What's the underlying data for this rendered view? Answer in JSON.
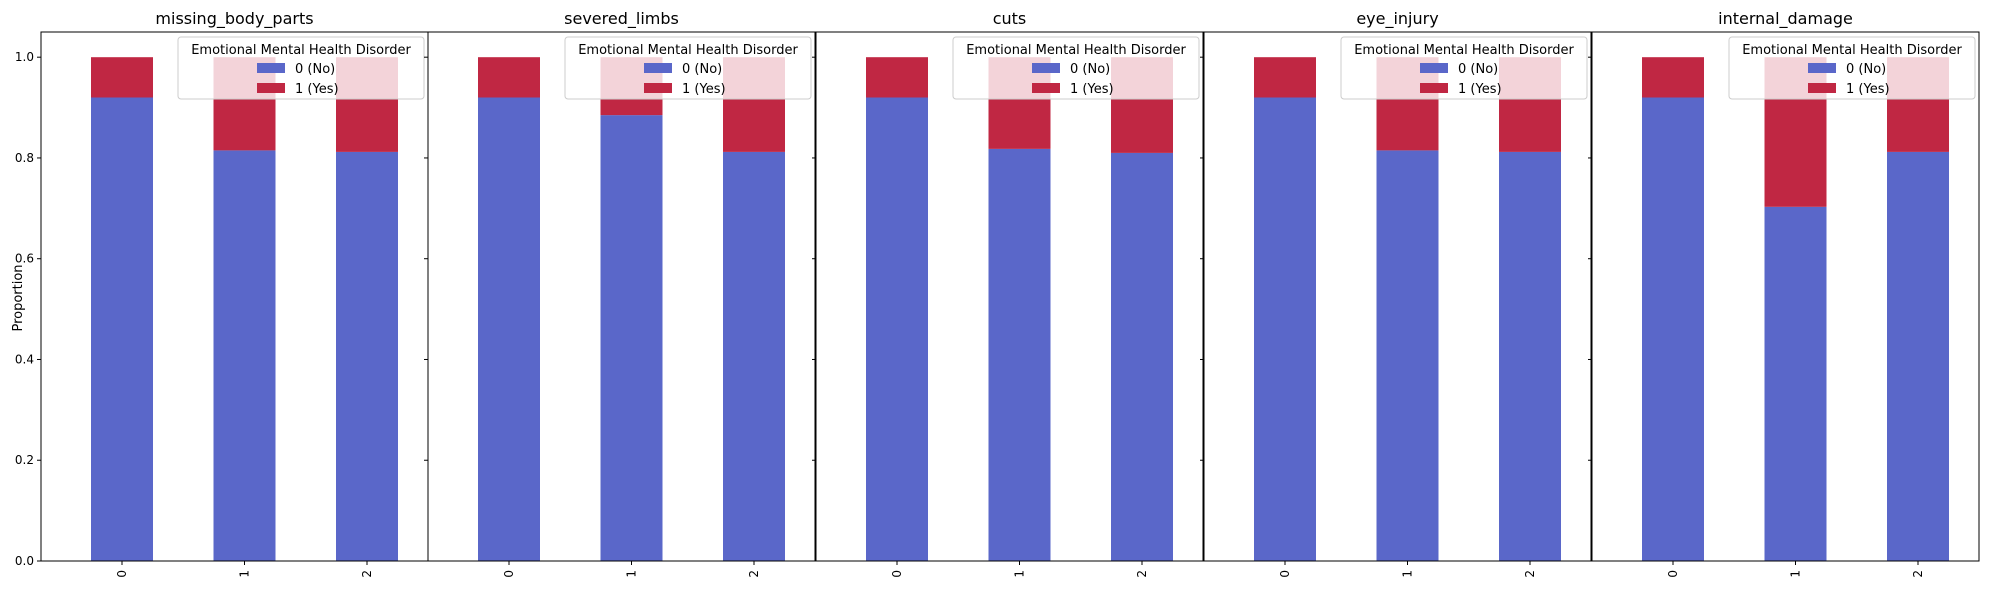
{
  "chart_data": {
    "type": "bar",
    "stacked": true,
    "ylabel": "Proportion",
    "ylim": [
      0,
      1.05
    ],
    "yticks": [
      "0.0",
      "0.2",
      "0.4",
      "0.6",
      "0.8",
      "1.0"
    ],
    "categories": [
      "0",
      "1",
      "2"
    ],
    "legend": {
      "title": "Emotional Mental Health Disorder",
      "placement": "upper-right",
      "entries": [
        "0 (No)",
        "1 (Yes)"
      ]
    },
    "colors": {
      "no": "#5a67c9",
      "yes": "#c02743"
    },
    "panels": [
      {
        "title": "missing_body_parts",
        "no": [
          0.92,
          0.815,
          0.812
        ],
        "yes": [
          0.08,
          0.185,
          0.188
        ]
      },
      {
        "title": "severed_limbs",
        "no": [
          0.92,
          0.885,
          0.812
        ],
        "yes": [
          0.08,
          0.115,
          0.188
        ]
      },
      {
        "title": "cuts",
        "no": [
          0.92,
          0.818,
          0.81
        ],
        "yes": [
          0.08,
          0.182,
          0.19
        ]
      },
      {
        "title": "eye_injury",
        "no": [
          0.92,
          0.815,
          0.812
        ],
        "yes": [
          0.08,
          0.185,
          0.188
        ]
      },
      {
        "title": "internal_damage",
        "no": [
          0.92,
          0.703,
          0.812
        ],
        "yes": [
          0.08,
          0.297,
          0.188
        ]
      }
    ]
  }
}
